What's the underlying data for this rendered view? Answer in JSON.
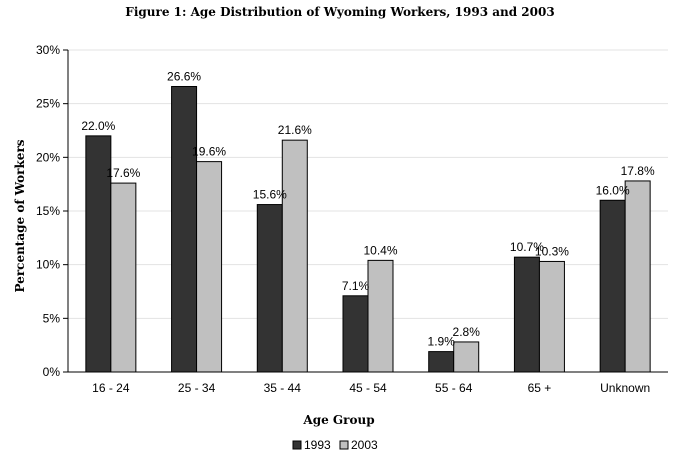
{
  "chart_data": {
    "type": "bar",
    "title": "Figure 1: Age Distribution of Wyoming Workers, 1993 and 2003",
    "xlabel": "Age Group",
    "ylabel": "Percentage of Workers",
    "categories": [
      "16 - 24",
      "25 - 34",
      "35 - 44",
      "45 - 54",
      "55 - 64",
      "65 +",
      "Unknown"
    ],
    "series": [
      {
        "name": "1993",
        "color": "#333333",
        "values": [
          22.0,
          26.6,
          15.6,
          7.1,
          1.9,
          10.7,
          16.0
        ],
        "labels": [
          "22.0%",
          "26.6%",
          "15.6%",
          "7.1%",
          "1.9%",
          "10.7%",
          "16.0%"
        ]
      },
      {
        "name": "2003",
        "color": "#c0c0c0",
        "values": [
          17.6,
          19.6,
          21.6,
          10.4,
          2.8,
          10.3,
          17.8
        ],
        "labels": [
          "17.6%",
          "19.6%",
          "21.6%",
          "10.4%",
          "2.8%",
          "10.3%",
          "17.8%"
        ]
      }
    ],
    "ylim": [
      0,
      30
    ],
    "yticks": [
      0,
      5,
      10,
      15,
      20,
      25,
      30
    ],
    "ytick_labels": [
      "0%",
      "5%",
      "10%",
      "15%",
      "20%",
      "25%",
      "30%"
    ],
    "grid": true,
    "legend_position": "bottom-center"
  }
}
